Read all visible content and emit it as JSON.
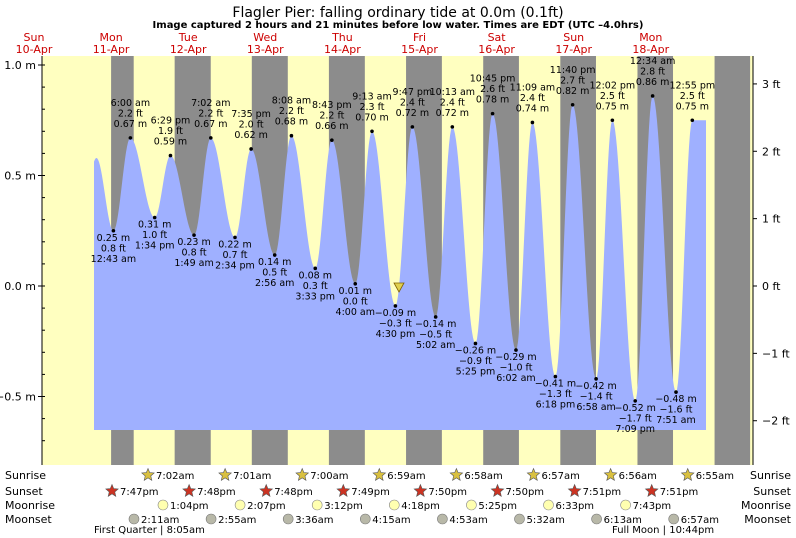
{
  "title": "Flagler Pier: falling  ordinary tide at 0.0m (0.1ft)",
  "subtitle": "Image captured 2 hours and 21 minutes before low water. Times are EDT (UTC –4.0hrs)",
  "colors": {
    "day": "#ffffc0",
    "night": "#8c8c8c",
    "water": "#9fb0ff",
    "day_labels": "#cc0000",
    "sun_star": "#d9c040",
    "sunset_star": "#cc3322",
    "moonrise": "#ffffb0",
    "moonset": "#b8b8a8"
  },
  "days": [
    {
      "dow": "Sun",
      "date": "10-Apr"
    },
    {
      "dow": "Mon",
      "date": "11-Apr"
    },
    {
      "dow": "Tue",
      "date": "12-Apr"
    },
    {
      "dow": "Wed",
      "date": "13-Apr"
    },
    {
      "dow": "Thu",
      "date": "14-Apr"
    },
    {
      "dow": "Fri",
      "date": "15-Apr"
    },
    {
      "dow": "Sat",
      "date": "16-Apr"
    },
    {
      "dow": "Sun",
      "date": "17-Apr"
    },
    {
      "dow": "Mon",
      "date": "18-Apr"
    }
  ],
  "row_labels": {
    "sunrise": "Sunrise",
    "sunset": "Sunset",
    "moonrise": "Moonrise",
    "moonset": "Moonset"
  },
  "sun_moon": {
    "sunrise": [
      "7:02am",
      "7:01am",
      "7:00am",
      "6:59am",
      "6:58am",
      "6:57am",
      "6:56am",
      "6:55am"
    ],
    "sunset": [
      "7:47pm",
      "7:48pm",
      "7:48pm",
      "7:49pm",
      "7:50pm",
      "7:50pm",
      "7:51pm",
      "7:51pm"
    ],
    "moonrise": [
      "1:04pm",
      "2:07pm",
      "3:12pm",
      "4:18pm",
      "5:25pm",
      "6:33pm",
      "7:43pm"
    ],
    "moonset": [
      "2:11am",
      "2:55am",
      "3:36am",
      "4:15am",
      "4:53am",
      "5:32am",
      "6:13am",
      "6:57am"
    ],
    "first_quarter": "First Quarter | 8:05am",
    "full_moon": "Full Moon | 10:44pm"
  },
  "chart_data": {
    "type": "area",
    "title": "Flagler Pier: falling  ordinary tide at 0.0m (0.1ft)",
    "xlabel": "",
    "ylabel_left": "m",
    "ylabel_right": "ft",
    "ylim_m": [
      -0.75,
      1.05
    ],
    "yticks_m": [
      "1.0 m",
      "0.5 m",
      "0.0 m",
      "−0.5 m"
    ],
    "yticks_ft": [
      "3 ft",
      "2 ft",
      "1 ft",
      "0 ft",
      "−1 ft",
      "−2 ft"
    ],
    "current_level_m": 0.0,
    "extremes": [
      {
        "type": "low",
        "day": 1,
        "time": "12:43 am",
        "h": 0.25,
        "lines": [
          "0.25 m",
          "0.8 ft",
          "12:43 am"
        ]
      },
      {
        "type": "high",
        "day": 1,
        "time": "6:00 am",
        "h": 0.67,
        "lines": [
          "6:00 am",
          "2.2 ft",
          "0.67 m"
        ]
      },
      {
        "type": "low",
        "day": 1,
        "time": "1:34 pm",
        "h": 0.31,
        "lines": [
          "0.31 m",
          "1.0 ft",
          "1:34 pm"
        ]
      },
      {
        "type": "high",
        "day": 1,
        "time": "6:29 pm",
        "h": 0.59,
        "lines": [
          "6:29 pm",
          "1.9 ft",
          "0.59 m"
        ]
      },
      {
        "type": "low",
        "day": 2,
        "time": "1:49 am",
        "h": 0.23,
        "lines": [
          "0.23 m",
          "0.8 ft",
          "1:49 am"
        ]
      },
      {
        "type": "high",
        "day": 2,
        "time": "7:02 am",
        "h": 0.67,
        "lines": [
          "7:02 am",
          "2.2 ft",
          "0.67 m"
        ]
      },
      {
        "type": "low",
        "day": 2,
        "time": "2:34 pm",
        "h": 0.22,
        "lines": [
          "0.22 m",
          "0.7 ft",
          "2:34 pm"
        ]
      },
      {
        "type": "high",
        "day": 2,
        "time": "7:35 pm",
        "h": 0.62,
        "lines": [
          "7:35 pm",
          "2.0 ft",
          "0.62 m"
        ]
      },
      {
        "type": "low",
        "day": 3,
        "time": "2:56 am",
        "h": 0.14,
        "lines": [
          "0.14 m",
          "0.5 ft",
          "2:56 am"
        ]
      },
      {
        "type": "high",
        "day": 3,
        "time": "8:08 am",
        "h": 0.68,
        "lines": [
          "8:08 am",
          "2.2 ft",
          "0.68 m"
        ]
      },
      {
        "type": "low",
        "day": 3,
        "time": "3:33 pm",
        "h": 0.08,
        "lines": [
          "0.08 m",
          "0.3 ft",
          "3:33 pm"
        ]
      },
      {
        "type": "high",
        "day": 3,
        "time": "8:43 pm",
        "h": 0.66,
        "lines": [
          "8:43 pm",
          "2.2 ft",
          "0.66 m"
        ]
      },
      {
        "type": "low",
        "day": 4,
        "time": "4:00 am",
        "h": 0.01,
        "lines": [
          "0.01 m",
          "0.0 ft",
          "4:00 am"
        ]
      },
      {
        "type": "high",
        "day": 4,
        "time": "9:13 am",
        "h": 0.7,
        "lines": [
          "9:13 am",
          "2.3 ft",
          "0.70 m"
        ]
      },
      {
        "type": "low",
        "day": 4,
        "time": "4:30 pm",
        "h": -0.09,
        "lines": [
          "−0.09 m",
          "−0.3 ft",
          "4:30 pm"
        ]
      },
      {
        "type": "high",
        "day": 4,
        "time": "9:47 pm",
        "h": 0.72,
        "lines": [
          "9:47 pm",
          "2.4 ft",
          "0.72 m"
        ]
      },
      {
        "type": "low",
        "day": 5,
        "time": "5:02 am",
        "h": -0.14,
        "lines": [
          "−0.14 m",
          "−0.5 ft",
          "5:02 am"
        ]
      },
      {
        "type": "high",
        "day": 5,
        "time": "10:13 am",
        "h": 0.72,
        "lines": [
          "10:13 am",
          "2.4 ft",
          "0.72 m"
        ]
      },
      {
        "type": "low",
        "day": 5,
        "time": "5:25 pm",
        "h": -0.26,
        "lines": [
          "−0.26 m",
          "−0.9 ft",
          "5:25 pm"
        ]
      },
      {
        "type": "high",
        "day": 5,
        "time": "10:45 pm",
        "h": 0.78,
        "lines": [
          "10:45 pm",
          "2.6 ft",
          "0.78 m"
        ]
      },
      {
        "type": "low",
        "day": 6,
        "time": "6:02 am",
        "h": -0.29,
        "lines": [
          "−0.29 m",
          "−1.0 ft",
          "6:02 am"
        ]
      },
      {
        "type": "high",
        "day": 6,
        "time": "11:09 am",
        "h": 0.74,
        "lines": [
          "11:09 am",
          "2.4 ft",
          "0.74 m"
        ]
      },
      {
        "type": "low",
        "day": 6,
        "time": "6:18 pm",
        "h": -0.41,
        "lines": [
          "−0.41 m",
          "−1.3 ft",
          "6:18 pm"
        ]
      },
      {
        "type": "high",
        "day": 6,
        "time": "11:40 pm",
        "h": 0.82,
        "lines": [
          "11:40 pm",
          "2.7 ft",
          "0.82 m"
        ]
      },
      {
        "type": "low",
        "day": 7,
        "time": "6:58 am",
        "h": -0.42,
        "lines": [
          "−0.42 m",
          "−1.4 ft",
          "6:58 am"
        ]
      },
      {
        "type": "high",
        "day": 7,
        "time": "12:02 pm",
        "h": 0.75,
        "lines": [
          "12:02 pm",
          "2.5 ft",
          "0.75 m"
        ]
      },
      {
        "type": "low",
        "day": 7,
        "time": "7:09 pm",
        "h": -0.52,
        "lines": [
          "−0.52 m",
          "−1.7 ft",
          "7:09 pm"
        ]
      },
      {
        "type": "high",
        "day": 8,
        "time": "12:34 am",
        "h": 0.86,
        "lines": [
          "12:34 am",
          "2.8 ft",
          "0.86 m"
        ]
      },
      {
        "type": "low",
        "day": 8,
        "time": "7:51 am",
        "h": -0.48,
        "lines": [
          "−0.48 m",
          "−1.6 ft",
          "7:51 am"
        ]
      },
      {
        "type": "high",
        "day": 8,
        "time": "12:55 pm",
        "h": 0.75,
        "lines": [
          "12:55 pm",
          "2.5 ft",
          "0.75 m"
        ]
      }
    ]
  }
}
